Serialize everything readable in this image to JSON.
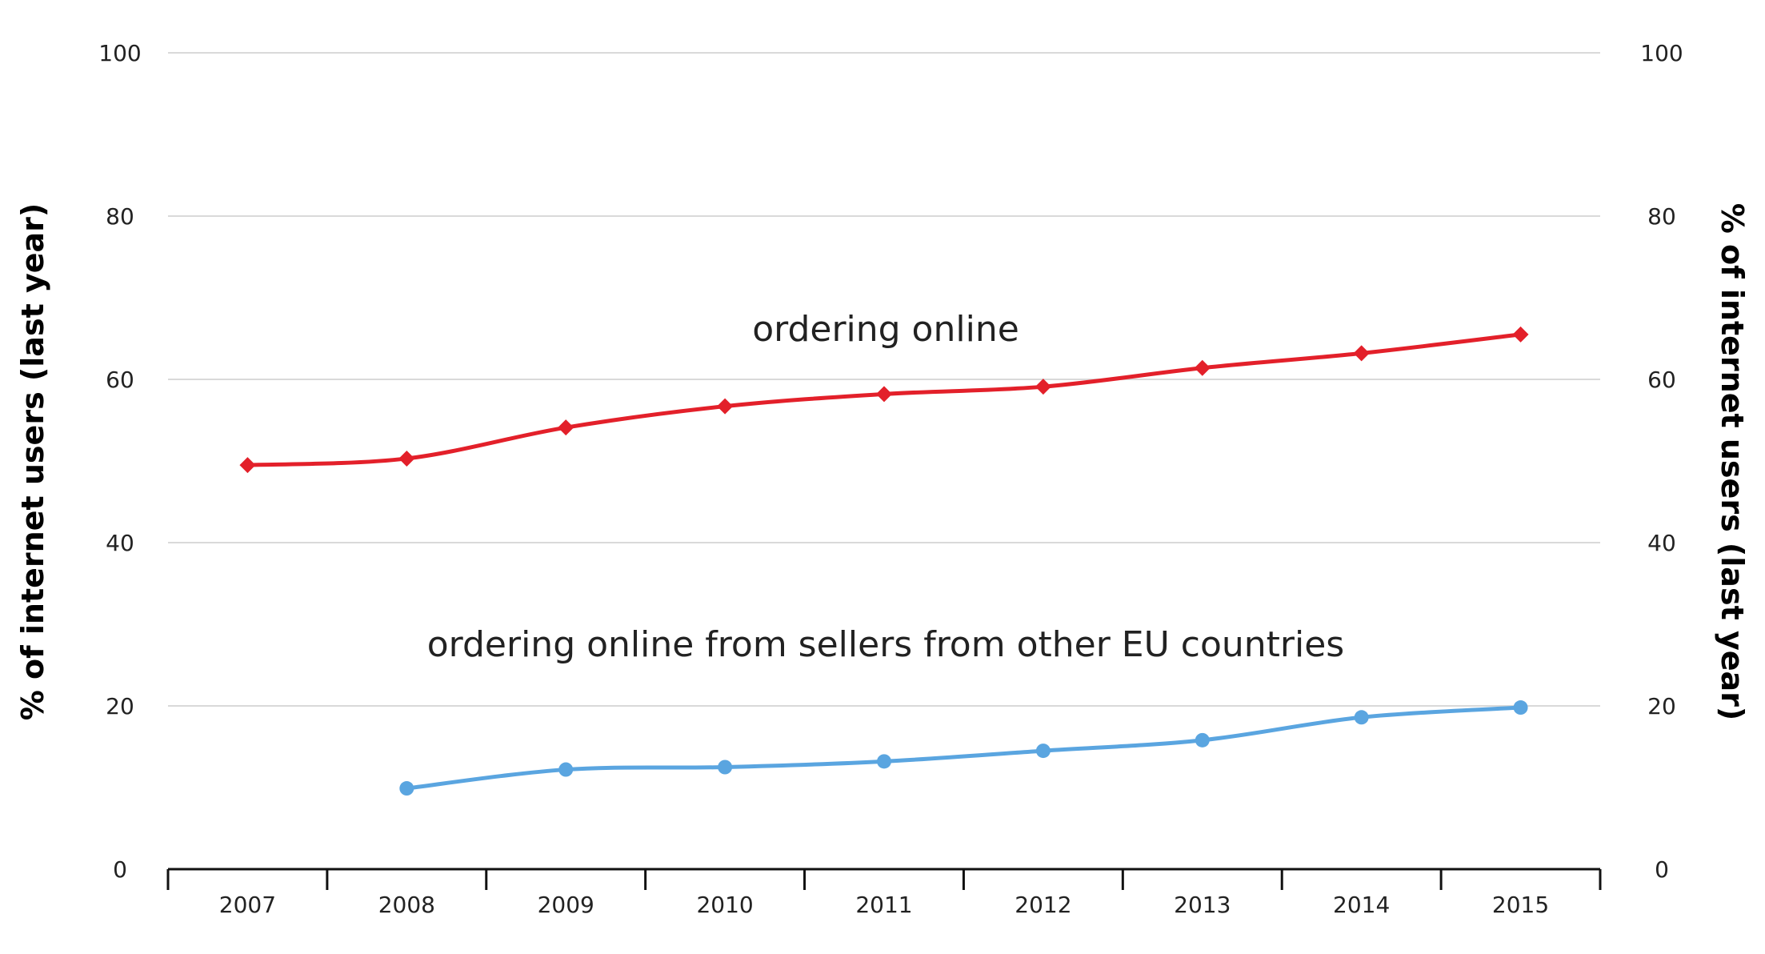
{
  "chart_data": {
    "type": "line",
    "categories": [
      "2007",
      "2008",
      "2009",
      "2010",
      "2011",
      "2012",
      "2013",
      "2014",
      "2015"
    ],
    "ylim": [
      0,
      100
    ],
    "yticks": [
      0,
      20,
      40,
      60,
      80,
      100
    ],
    "ylabel": "% of internet users (last year)",
    "ylabel_right": "% of internet users (last year)",
    "grid": true,
    "series": [
      {
        "name": "ordering online",
        "color": "#e3202a",
        "marker": "diamond",
        "values": [
          49.5,
          50.3,
          54.1,
          56.7,
          58.2,
          59.1,
          61.4,
          63.2,
          65.5
        ]
      },
      {
        "name": "ordering online from sellers from other EU countries",
        "color": "#5aa5e0",
        "marker": "circle",
        "values": [
          null,
          9.9,
          12.2,
          12.5,
          13.2,
          14.5,
          15.8,
          18.6,
          19.8
        ]
      }
    ]
  }
}
